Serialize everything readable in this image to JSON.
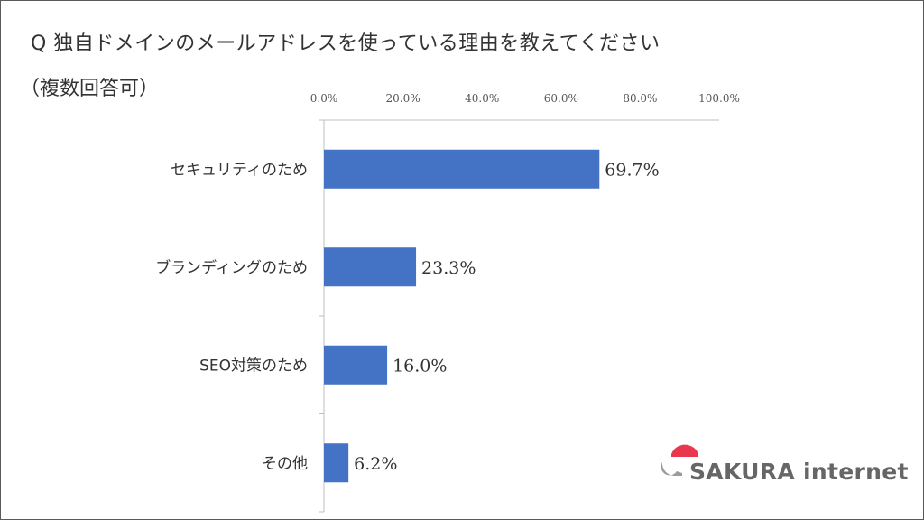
{
  "header": {
    "title": "Q 独自ドメインのメールアドレスを使っている理由を教えてください",
    "subtitle": "（複数回答可）"
  },
  "chart_data": {
    "type": "bar",
    "orientation": "horizontal",
    "categories": [
      "セキュリティのため",
      "ブランディングのため",
      "SEO対策のため",
      "その他"
    ],
    "values": [
      69.7,
      23.3,
      16.0,
      6.2
    ],
    "value_labels": [
      "69.7%",
      "23.3%",
      "16.0%",
      "6.2%"
    ],
    "xlim": [
      0,
      100
    ],
    "x_ticks": [
      "0.0%",
      "20.0%",
      "40.0%",
      "60.0%",
      "80.0%",
      "100.0%"
    ],
    "x_axis_position": "top",
    "grid": false,
    "bar_color": "#4472C4"
  },
  "logo": {
    "text": "SAKURA internet",
    "colors": {
      "accent": "#E8374E",
      "gray": "#9C9C9C"
    }
  }
}
